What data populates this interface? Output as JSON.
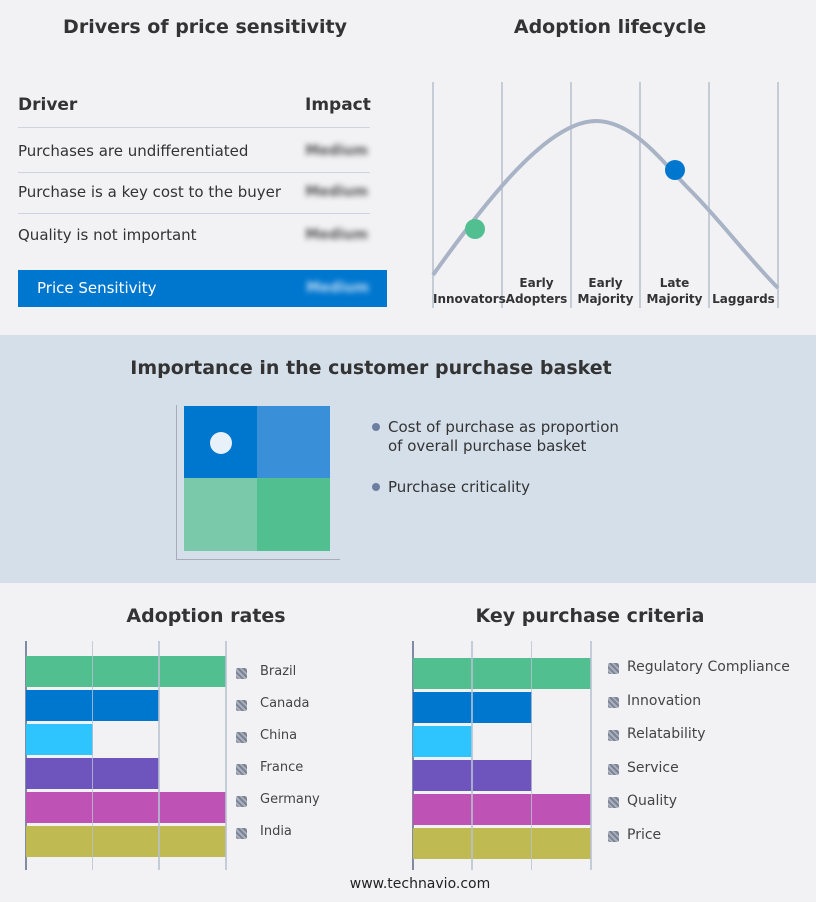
{
  "drivers": {
    "title": "Drivers of price sensitivity",
    "col_driver": "Driver",
    "col_impact": "Impact",
    "rows": [
      {
        "driver": "Purchases are undifferentiated",
        "impact": "Medium"
      },
      {
        "driver": "Purchase is a key cost to the buyer",
        "impact": "Medium"
      },
      {
        "driver": "Quality is not important",
        "impact": "Medium"
      }
    ],
    "summary": {
      "label": "Price Sensitivity",
      "impact": "Medium"
    },
    "accent": "#0077cf"
  },
  "lifecycle": {
    "title": "Adoption lifecycle",
    "stages": [
      [
        "Innovators"
      ],
      [
        "Early",
        "Adopters"
      ],
      [
        "Early",
        "Majority"
      ],
      [
        "Late",
        "Majority"
      ],
      [
        "Laggards"
      ]
    ],
    "markers": [
      {
        "stage": "Innovators",
        "color": "#52bf90"
      },
      {
        "stage": "Late Majority",
        "color": "#0077cf"
      }
    ]
  },
  "basket": {
    "title": "Importance in the customer purchase basket",
    "items": [
      "Cost of purchase as proportion of overall purchase basket",
      "Purchase criticality"
    ]
  },
  "chart_data": [
    {
      "type": "bar",
      "orientation": "horizontal",
      "title": "Adoption rates",
      "categories": [
        "Brazil",
        "Canada",
        "China",
        "France",
        "Germany",
        "India"
      ],
      "values": [
        3,
        2,
        1,
        2,
        3,
        3
      ],
      "colors": [
        "#52bf90",
        "#0077cf",
        "#2ec5ff",
        "#6e54bd",
        "#bf52b5",
        "#bfbb52"
      ],
      "xlim": [
        0,
        3
      ],
      "grid": true,
      "legend": "right"
    },
    {
      "type": "bar",
      "orientation": "horizontal",
      "title": "Key purchase criteria",
      "categories": [
        "Regulatory Compliance",
        "Innovation",
        "Relatability",
        "Service",
        "Quality",
        "Price"
      ],
      "values": [
        3,
        2,
        1,
        2,
        3,
        3
      ],
      "colors": [
        "#52bf90",
        "#0077cf",
        "#2ec5ff",
        "#6e54bd",
        "#bf52b5",
        "#bfbb52"
      ],
      "xlim": [
        0,
        3
      ],
      "grid": true,
      "legend": "right"
    }
  ],
  "footer": "www.technavio.com"
}
